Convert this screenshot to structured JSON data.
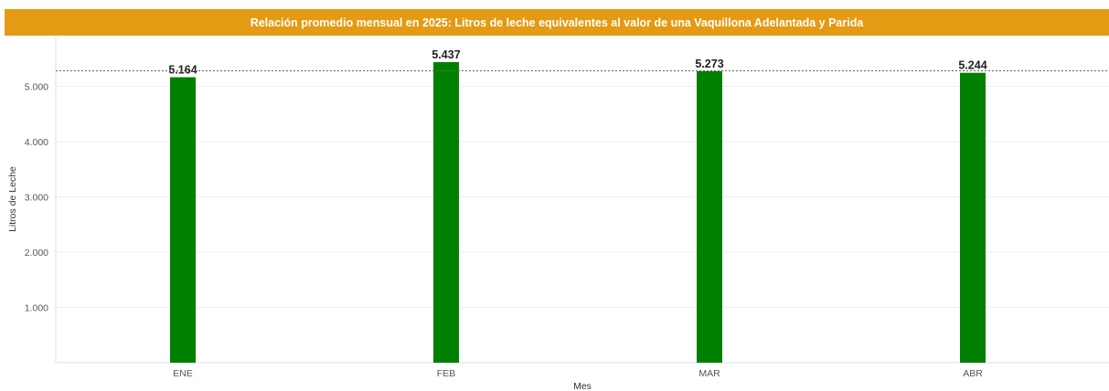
{
  "colors": {
    "title_bg": "#E59A14",
    "bar": "#008000",
    "reference_line": "#666666",
    "grid": "#EEEEEE"
  },
  "chart_data": {
    "type": "bar",
    "title": "Relación promedio mensual en 2025: Litros de leche equivalentes al valor de una Vaquillona Adelantada y Parida",
    "xlabel": "Mes",
    "ylabel": "Litros de Leche",
    "categories": [
      "ENE",
      "FEB",
      "MAR",
      "ABR"
    ],
    "values": [
      5164,
      5437,
      5273,
      5244
    ],
    "data_labels": [
      "5.164",
      "5.437",
      "5.273",
      "5.244"
    ],
    "yticks": [
      1000,
      2000,
      3000,
      4000,
      5000
    ],
    "ytick_labels": [
      "1.000",
      "2.000",
      "3.000",
      "4.000",
      "5.000"
    ],
    "ylim": [
      0,
      5900
    ],
    "reference_line": 5280,
    "grid": true,
    "legend": "none"
  }
}
